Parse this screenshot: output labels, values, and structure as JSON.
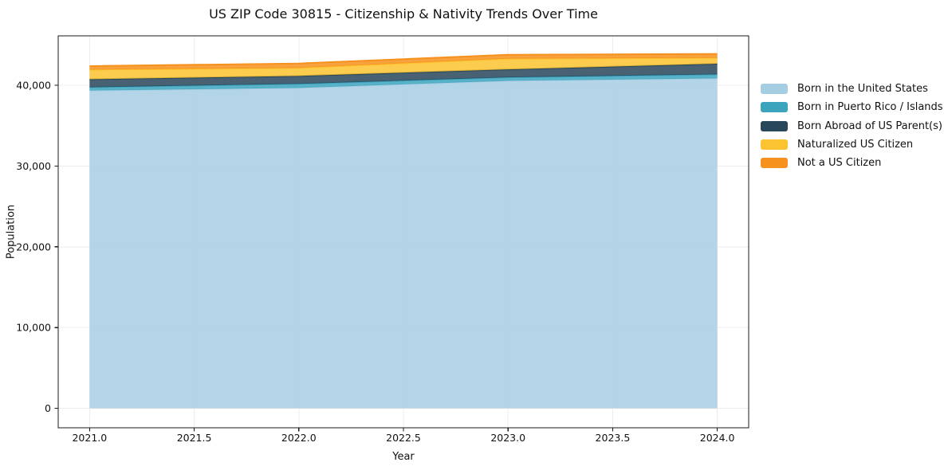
{
  "chart_data": {
    "type": "area",
    "stacked": true,
    "title": "US ZIP Code 30815 - Citizenship & Nativity Trends Over Time",
    "xlabel": "Year",
    "ylabel": "Population",
    "x": [
      2021,
      2022,
      2023,
      2024
    ],
    "series": [
      {
        "name": "Born in the United States",
        "color": "#a6cee3",
        "values": [
          39330,
          39660,
          40540,
          40835
        ]
      },
      {
        "name": "Born in Puerto Rico / Islands",
        "color": "#3ca4bd",
        "values": [
          400,
          500,
          420,
          500
        ]
      },
      {
        "name": "Born Abroad of US Parent(s)",
        "color": "#29475a",
        "values": [
          1000,
          980,
          990,
          1310
        ]
      },
      {
        "name": "Naturalized US Citizen",
        "color": "#fcc330",
        "values": [
          1180,
          985,
          1320,
          725
        ]
      },
      {
        "name": "Not a US Citizen",
        "color": "#f7911d",
        "values": [
          450,
          555,
          490,
          490
        ]
      }
    ],
    "x_tick_values": [
      2021.0,
      2021.5,
      2022.0,
      2022.5,
      2023.0,
      2023.5,
      2024.0
    ],
    "x_tick_labels": [
      "2021.0",
      "2021.5",
      "2022.0",
      "2022.5",
      "2023.0",
      "2023.5",
      "2024.0"
    ],
    "y_tick_values": [
      0,
      10000,
      20000,
      30000,
      40000
    ],
    "y_tick_labels": [
      "0",
      "10,000",
      "20,000",
      "30,000",
      "40,000"
    ],
    "xlim": [
      2020.85,
      2024.15
    ],
    "ylim": [
      -2400,
      46100
    ],
    "grid": true,
    "legend_position": "right",
    "colors": {
      "background": "#ffffff",
      "grid": "#ededed",
      "axis": "#1a1a1a",
      "text": "#111111"
    }
  }
}
